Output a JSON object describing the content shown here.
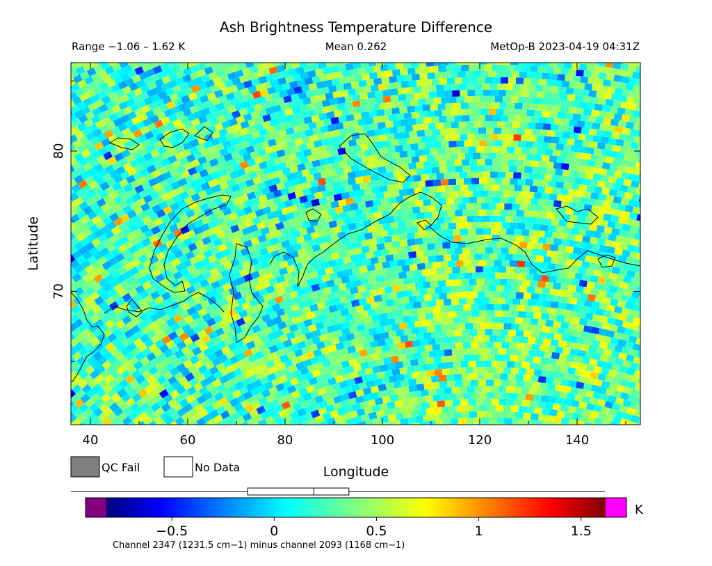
{
  "chart_data": {
    "type": "heatmap",
    "title": "Ash Brightness Temperature Difference",
    "range_text": "Range −1.06 – 1.62 K",
    "mean_text": "Mean 0.262",
    "satellite_time_text": "MetOp-B 2023-04-19 04:31Z",
    "xlabel": "Longitude",
    "ylabel": "Latitude",
    "xlim": [
      36,
      153
    ],
    "ylim": [
      60.5,
      86.3
    ],
    "x_ticks": [
      40,
      60,
      80,
      100,
      120,
      140
    ],
    "y_ticks": [
      70,
      80
    ],
    "x_tick_labels": [
      "40",
      "60",
      "80",
      "100",
      "120",
      "140"
    ],
    "y_tick_labels": [
      "70",
      "80"
    ],
    "grid": false,
    "legend": [
      {
        "label": "QC Fail",
        "color": "#808080"
      },
      {
        "label": "No Data",
        "color": "#ffffff"
      }
    ],
    "colorbar": {
      "min": -0.82,
      "max": 1.62,
      "unit": "K",
      "ticks": [
        -0.5,
        0,
        0.5,
        1,
        1.5
      ],
      "tick_labels": [
        "−0.5",
        "0",
        "0.5",
        "1",
        "1.5"
      ],
      "under_color": "#800080",
      "over_color": "#ff00ff",
      "boxplot": {
        "q1": 0.05,
        "median": 0.262,
        "q3": 0.44,
        "whisker_low": -1.06,
        "whisker_high": 1.62
      }
    },
    "channel_note": "Channel 2347 (1231.5 cm−1) minus channel 2093 (1168 cm−1)"
  }
}
